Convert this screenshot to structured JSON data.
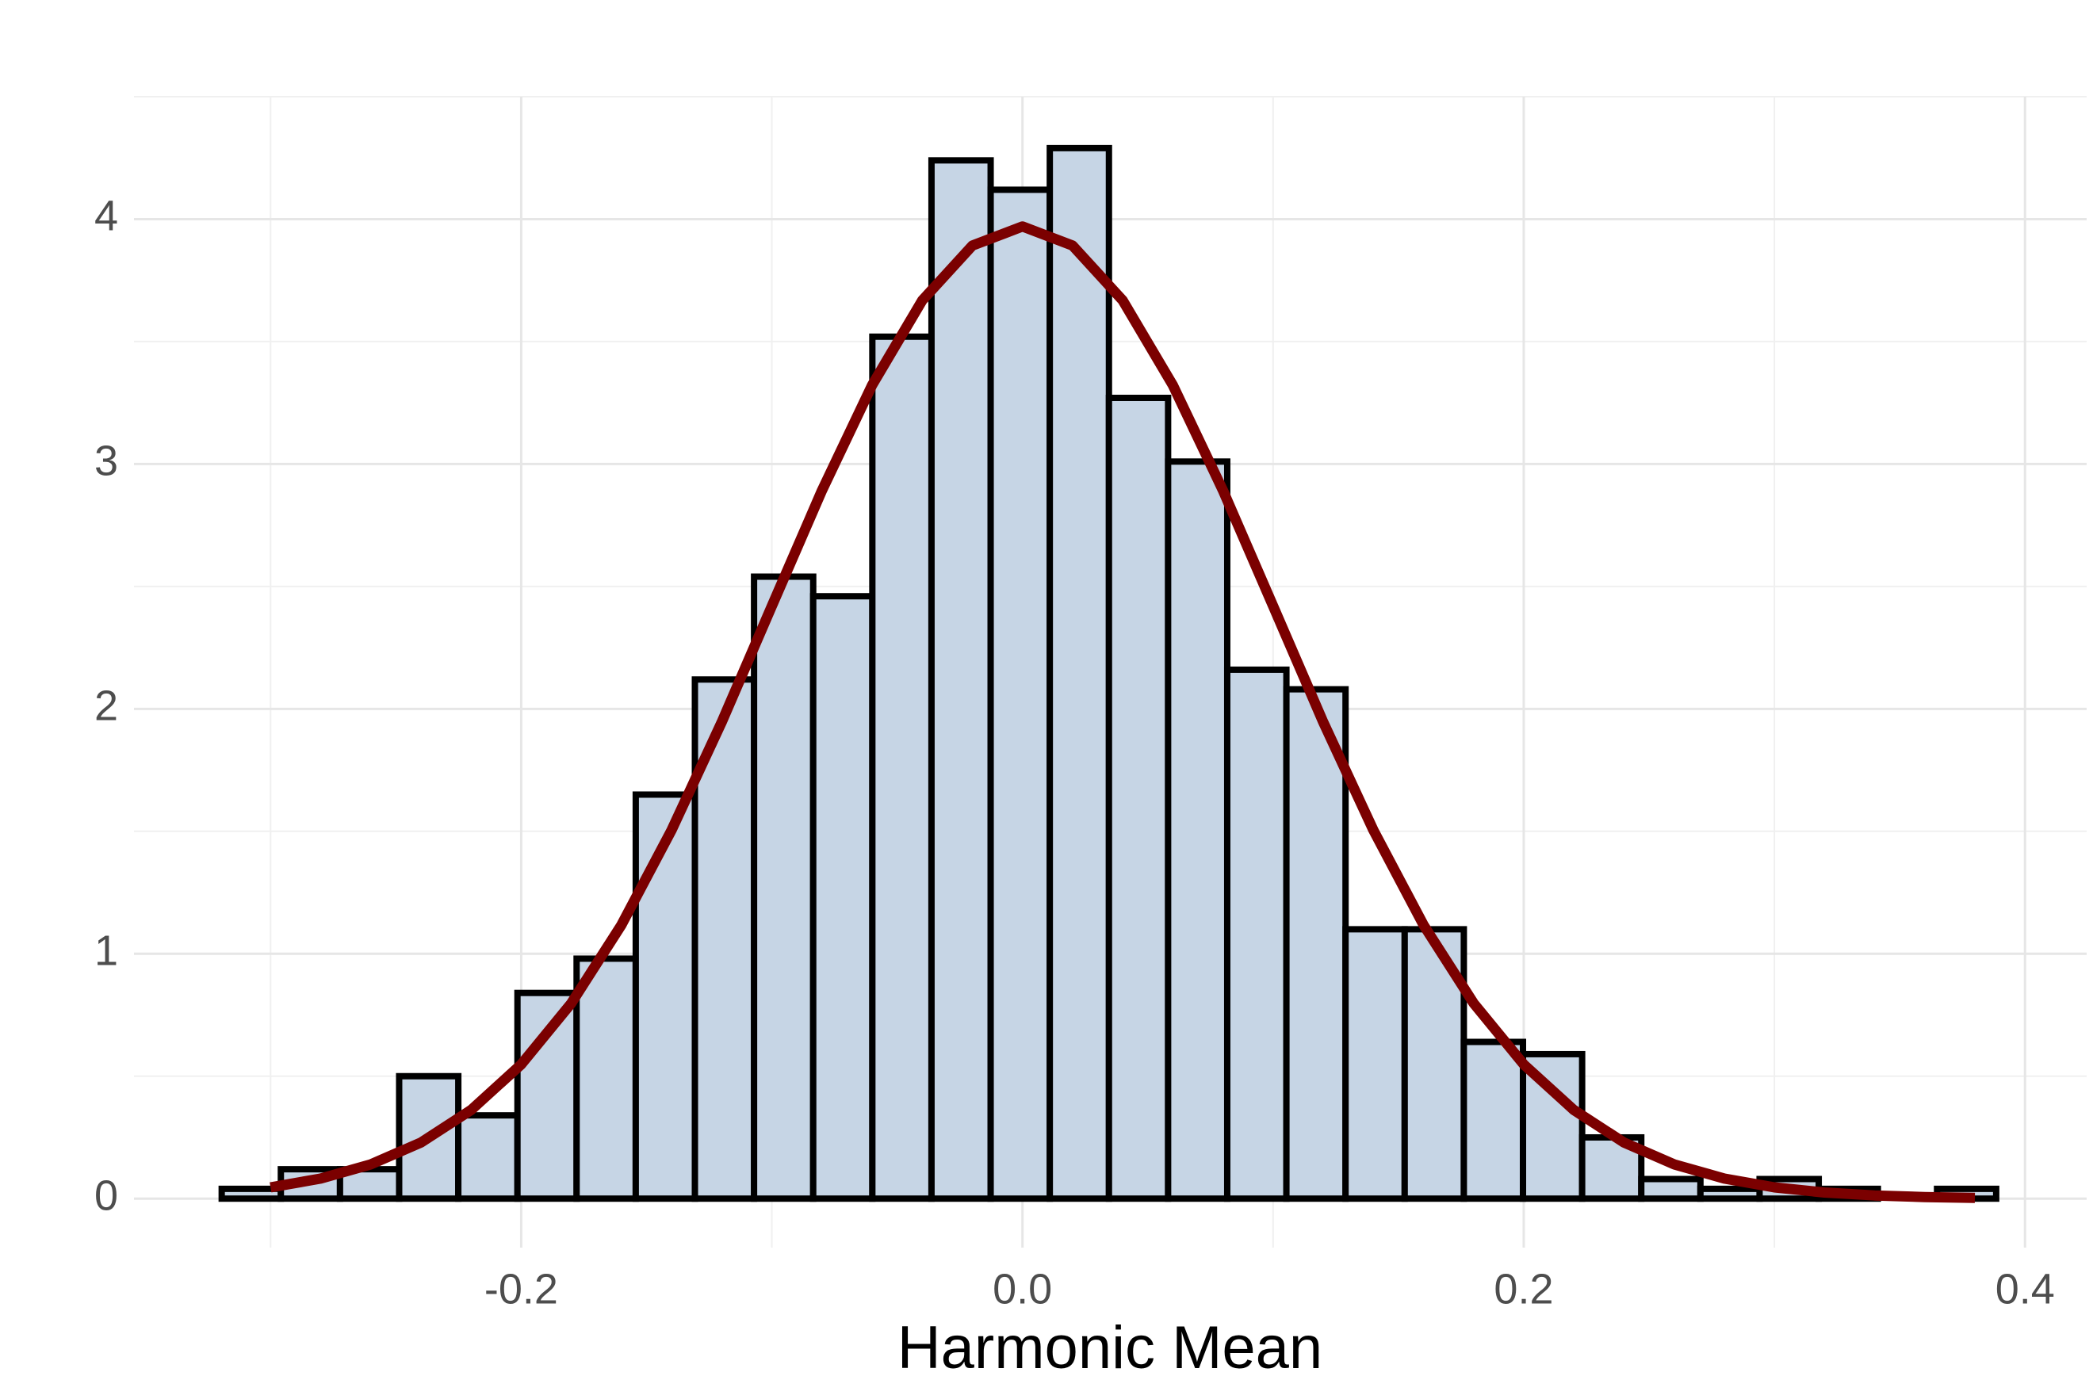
{
  "chart_data": {
    "type": "histogram",
    "xlabel": "Harmonic Mean",
    "bins": [
      -0.3195,
      -0.2959,
      -0.2723,
      -0.2487,
      -0.2251,
      -0.2015,
      -0.1779,
      -0.1543,
      -0.1307,
      -0.1071,
      -0.0835,
      -0.0599,
      -0.0363,
      -0.0127,
      0.0109,
      0.0345,
      0.0581,
      0.0817,
      0.1053,
      0.1289,
      0.1525,
      0.1761,
      0.1997,
      0.2233,
      0.2469,
      0.2705,
      0.2941,
      0.3177,
      0.3413,
      0.3649,
      0.3885
    ],
    "values": [
      0.04,
      0.12,
      0.12,
      0.5,
      0.34,
      0.84,
      0.98,
      1.65,
      2.12,
      2.54,
      2.46,
      3.52,
      4.24,
      4.12,
      4.29,
      3.27,
      3.01,
      2.16,
      2.08,
      1.1,
      1.1,
      0.64,
      0.59,
      0.25,
      0.08,
      0.04,
      0.08,
      0.04,
      0,
      0.04
    ],
    "color": "#c6d5e5",
    "edgecolor": "#000000",
    "curve": {
      "color": "#7b0000",
      "x": [
        -0.3,
        -0.28,
        -0.26,
        -0.24,
        -0.22,
        -0.2,
        -0.18,
        -0.16,
        -0.14,
        -0.12,
        -0.1,
        -0.08,
        -0.06,
        -0.04,
        -0.02,
        0,
        0.02,
        0.04,
        0.06,
        0.08,
        0.1,
        0.12,
        0.14,
        0.16,
        0.18,
        0.2,
        0.22,
        0.24,
        0.26,
        0.28,
        0.3,
        0.32,
        0.34,
        0.36,
        0.38
      ],
      "values": [
        0.046,
        0.082,
        0.14,
        0.229,
        0.362,
        0.548,
        0.798,
        1.118,
        1.505,
        1.946,
        2.42,
        2.892,
        3.322,
        3.668,
        3.892,
        3.97,
        3.892,
        3.668,
        3.322,
        2.892,
        2.42,
        1.946,
        1.505,
        1.118,
        0.798,
        0.548,
        0.362,
        0.229,
        0.14,
        0.082,
        0.046,
        0.025,
        0.013,
        0.0065,
        0.0031
      ]
    },
    "xlim": [
      -0.3545,
      0.4246
    ],
    "ylim": [
      -0.2,
      4.5
    ],
    "xticks": [
      {
        "value": -0.2,
        "label": "-0.2"
      },
      {
        "value": 0,
        "label": "0.0"
      },
      {
        "value": 0.2,
        "label": "0.2"
      },
      {
        "value": 0.4,
        "label": "0.4"
      }
    ],
    "yticks": [
      0,
      1,
      2,
      3,
      4
    ],
    "grid": true
  }
}
